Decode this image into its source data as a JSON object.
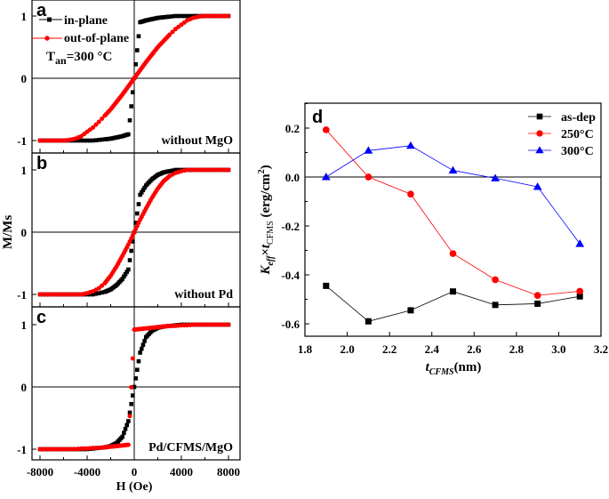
{
  "chart_data": [
    {
      "type": "scatter",
      "panels": [
        {
          "label": "a",
          "annotation": "without MgO",
          "series": [
            {
              "name": "in-plane",
              "color": "#000000",
              "marker": "square",
              "y_pos": [
                0.0,
                0.9,
                0.93,
                0.95,
                0.97,
                0.98,
                0.99,
                1.0,
                1.0,
                1.0,
                1.0,
                1.0,
                1.0,
                1.0,
                1.0,
                1.0,
                1.0
              ]
            },
            {
              "name": "out-of-plane",
              "color": "#ff0000",
              "marker": "circle",
              "y_pos": [
                0.0,
                0.13,
                0.26,
                0.38,
                0.5,
                0.6,
                0.7,
                0.79,
                0.86,
                0.93,
                0.97,
                0.99,
                1.0,
                1.0,
                1.0,
                1.0,
                1.0
              ]
            }
          ]
        },
        {
          "label": "b",
          "annotation": "without Pd",
          "series": [
            {
              "name": "in-plane",
              "color": "#000000",
              "marker": "square",
              "y_pos": [
                0.0,
                0.6,
                0.75,
                0.85,
                0.92,
                0.96,
                0.98,
                1.0,
                1.0,
                1.0,
                1.0,
                1.0,
                1.0,
                1.0,
                1.0,
                1.0,
                1.0
              ]
            },
            {
              "name": "out-of-plane",
              "color": "#ff0000",
              "marker": "circle",
              "y_pos": [
                0.0,
                0.2,
                0.38,
                0.55,
                0.7,
                0.82,
                0.9,
                0.95,
                0.98,
                1.0,
                1.0,
                1.0,
                1.0,
                1.0,
                1.0,
                1.0,
                1.0
              ]
            }
          ]
        },
        {
          "label": "c",
          "annotation": "Pd/CFMS/MgO",
          "series": [
            {
              "name": "in-plane",
              "color": "#000000",
              "marker": "square",
              "y_pos": [
                0.0,
                0.55,
                0.8,
                0.9,
                0.95,
                0.97,
                0.98,
                0.99,
                1.0,
                1.0,
                1.0,
                1.0,
                1.0,
                1.0,
                1.0,
                1.0,
                1.0
              ]
            },
            {
              "name": "out-of-plane",
              "color": "#ff0000",
              "marker": "circle",
              "y_pos": [
                0.92,
                0.93,
                0.94,
                0.95,
                0.96,
                0.97,
                0.98,
                0.98,
                0.99,
                0.99,
                1.0,
                1.0,
                1.0,
                1.0,
                1.0,
                1.0,
                1.0
              ]
            }
          ]
        }
      ],
      "x_pos": [
        0,
        500,
        1000,
        1500,
        2000,
        2500,
        3000,
        3500,
        4000,
        4500,
        5000,
        5500,
        6000,
        6500,
        7000,
        7500,
        8000
      ],
      "symmetry": "odd",
      "legend": [
        "in-plane",
        "out-of-plane"
      ],
      "legend_note_main": "T",
      "legend_note_sub": "an",
      "legend_note_rest": "=300 °C",
      "xlabel": "H (Oe)",
      "ylabel": "M/Ms",
      "xlim": [
        -8000,
        8000
      ],
      "ylim": [
        -1.2,
        1.2
      ],
      "xticks": [
        "-8000",
        "-4000",
        "0",
        "4000",
        "8000"
      ],
      "yticks": [
        "1",
        "0",
        "-1"
      ]
    },
    {
      "type": "line",
      "label": "d",
      "x": [
        1.9,
        2.1,
        2.3,
        2.5,
        2.7,
        2.9,
        3.1
      ],
      "series": [
        {
          "name": "as-dep",
          "color": "#000000",
          "marker": "square",
          "values": [
            -0.445,
            -0.59,
            -0.545,
            -0.468,
            -0.523,
            -0.518,
            -0.488
          ]
        },
        {
          "name": "250°C",
          "color": "#ff0000",
          "marker": "circle",
          "values": [
            0.193,
            0.0,
            -0.07,
            -0.313,
            -0.42,
            -0.484,
            -0.467
          ]
        },
        {
          "name": "300°C",
          "color": "#0000ff",
          "marker": "triangle",
          "values": [
            0.0,
            0.108,
            0.128,
            0.027,
            -0.005,
            -0.04,
            -0.273
          ]
        }
      ],
      "xlabel_main": "t",
      "xlabel_sub": "CFMS",
      "xlabel_unit": "(nm)",
      "ylabel_parts": {
        "k": "K",
        "k_sub": "eff",
        "times": "×t",
        "t_sub": "CFMS",
        "unit": " (erg/cm",
        "sup": "2",
        "close": ")"
      },
      "xlim": [
        1.8,
        3.2
      ],
      "ylim": [
        -0.65,
        0.3
      ],
      "xticks": [
        "1.8",
        "2.0",
        "2.2",
        "2.4",
        "2.6",
        "2.8",
        "3.0",
        "3.2"
      ],
      "yticks": [
        "0.2",
        "0.0",
        "-0.2",
        "-0.4",
        "-0.6"
      ],
      "legend_position": "top-right"
    }
  ]
}
